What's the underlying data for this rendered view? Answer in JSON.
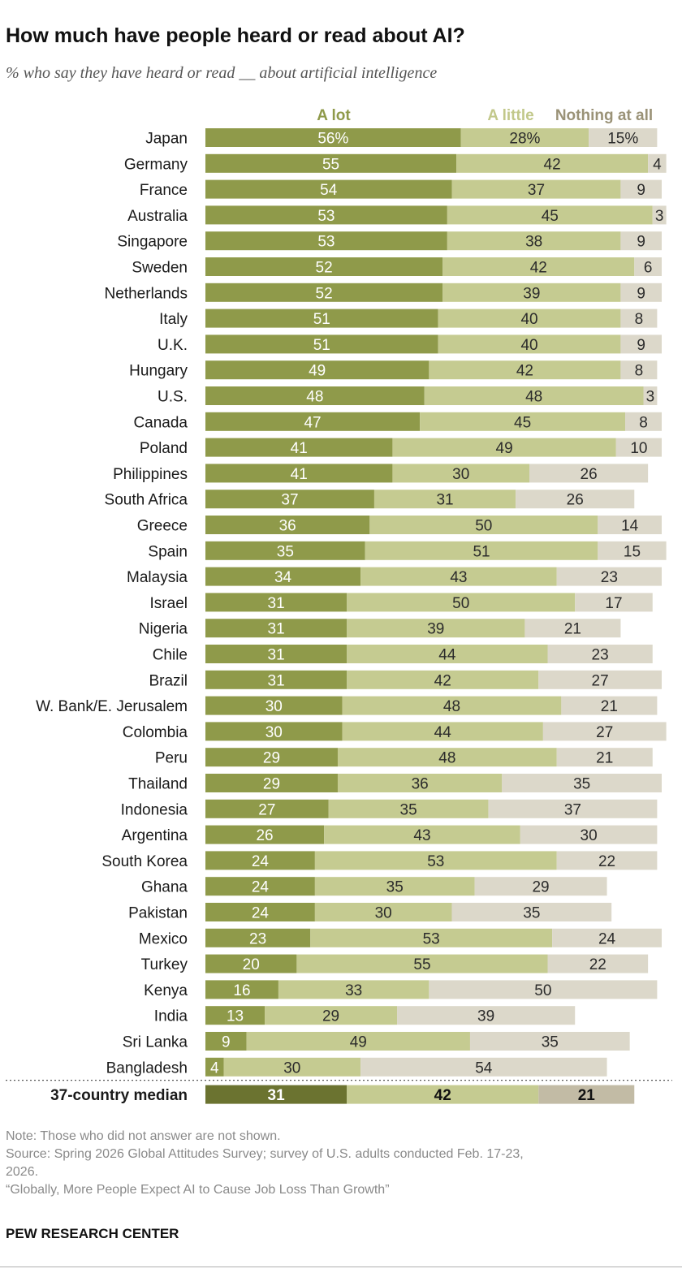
{
  "header": {
    "title": "How much have people heard or read about AI?",
    "subtitle": "% who say they have heard or read __ about artificial intelligence"
  },
  "colors": {
    "a_lot": "#8f9a4a",
    "a_little": "#c5cb91",
    "nothing": "#dcd8ca",
    "median_a_lot": "#6b7330",
    "median_nothing": "#c2bba5",
    "legend_a_lot": "#8f9a4a",
    "legend_a_little": "#c2c88a",
    "legend_nothing": "#9a9277"
  },
  "chart_data": {
    "type": "bar",
    "orientation": "horizontal",
    "stacked": true,
    "unit": "%",
    "series": [
      {
        "name": "A lot"
      },
      {
        "name": "A little"
      },
      {
        "name": "Nothing at all"
      }
    ],
    "rows": [
      {
        "country": "Japan",
        "values": [
          56,
          28,
          15
        ],
        "labels": [
          "56%",
          "28%",
          "15%"
        ]
      },
      {
        "country": "Germany",
        "values": [
          55,
          42,
          4
        ],
        "labels": [
          "55",
          "42",
          "4"
        ]
      },
      {
        "country": "France",
        "values": [
          54,
          37,
          9
        ],
        "labels": [
          "54",
          "37",
          "9"
        ]
      },
      {
        "country": "Australia",
        "values": [
          53,
          45,
          3
        ],
        "labels": [
          "53",
          "45",
          "3"
        ]
      },
      {
        "country": "Singapore",
        "values": [
          53,
          38,
          9
        ],
        "labels": [
          "53",
          "38",
          "9"
        ]
      },
      {
        "country": "Sweden",
        "values": [
          52,
          42,
          6
        ],
        "labels": [
          "52",
          "42",
          "6"
        ]
      },
      {
        "country": "Netherlands",
        "values": [
          52,
          39,
          9
        ],
        "labels": [
          "52",
          "39",
          "9"
        ]
      },
      {
        "country": "Italy",
        "values": [
          51,
          40,
          8
        ],
        "labels": [
          "51",
          "40",
          "8"
        ]
      },
      {
        "country": "U.K.",
        "values": [
          51,
          40,
          9
        ],
        "labels": [
          "51",
          "40",
          "9"
        ]
      },
      {
        "country": "Hungary",
        "values": [
          49,
          42,
          8
        ],
        "labels": [
          "49",
          "42",
          "8"
        ]
      },
      {
        "country": "U.S.",
        "values": [
          48,
          48,
          3
        ],
        "labels": [
          "48",
          "48",
          "3"
        ]
      },
      {
        "country": "Canada",
        "values": [
          47,
          45,
          8
        ],
        "labels": [
          "47",
          "45",
          "8"
        ]
      },
      {
        "country": "Poland",
        "values": [
          41,
          49,
          10
        ],
        "labels": [
          "41",
          "49",
          "10"
        ]
      },
      {
        "country": "Philippines",
        "values": [
          41,
          30,
          26
        ],
        "labels": [
          "41",
          "30",
          "26"
        ]
      },
      {
        "country": "South Africa",
        "values": [
          37,
          31,
          26
        ],
        "labels": [
          "37",
          "31",
          "26"
        ]
      },
      {
        "country": "Greece",
        "values": [
          36,
          50,
          14
        ],
        "labels": [
          "36",
          "50",
          "14"
        ]
      },
      {
        "country": "Spain",
        "values": [
          35,
          51,
          15
        ],
        "labels": [
          "35",
          "51",
          "15"
        ]
      },
      {
        "country": "Malaysia",
        "values": [
          34,
          43,
          23
        ],
        "labels": [
          "34",
          "43",
          "23"
        ]
      },
      {
        "country": "Israel",
        "values": [
          31,
          50,
          17
        ],
        "labels": [
          "31",
          "50",
          "17"
        ]
      },
      {
        "country": "Nigeria",
        "values": [
          31,
          39,
          21
        ],
        "labels": [
          "31",
          "39",
          "21"
        ]
      },
      {
        "country": "Chile",
        "values": [
          31,
          44,
          23
        ],
        "labels": [
          "31",
          "44",
          "23"
        ]
      },
      {
        "country": "Brazil",
        "values": [
          31,
          42,
          27
        ],
        "labels": [
          "31",
          "42",
          "27"
        ]
      },
      {
        "country": "W. Bank/E. Jerusalem",
        "values": [
          30,
          48,
          21
        ],
        "labels": [
          "30",
          "48",
          "21"
        ]
      },
      {
        "country": "Colombia",
        "values": [
          30,
          44,
          27
        ],
        "labels": [
          "30",
          "44",
          "27"
        ]
      },
      {
        "country": "Peru",
        "values": [
          29,
          48,
          21
        ],
        "labels": [
          "29",
          "48",
          "21"
        ]
      },
      {
        "country": "Thailand",
        "values": [
          29,
          36,
          35
        ],
        "labels": [
          "29",
          "36",
          "35"
        ]
      },
      {
        "country": "Indonesia",
        "values": [
          27,
          35,
          37
        ],
        "labels": [
          "27",
          "35",
          "37"
        ]
      },
      {
        "country": "Argentina",
        "values": [
          26,
          43,
          30
        ],
        "labels": [
          "26",
          "43",
          "30"
        ]
      },
      {
        "country": "South Korea",
        "values": [
          24,
          53,
          22
        ],
        "labels": [
          "24",
          "53",
          "22"
        ]
      },
      {
        "country": "Ghana",
        "values": [
          24,
          35,
          29
        ],
        "labels": [
          "24",
          "35",
          "29"
        ]
      },
      {
        "country": "Pakistan",
        "values": [
          24,
          30,
          35
        ],
        "labels": [
          "24",
          "30",
          "35"
        ]
      },
      {
        "country": "Mexico",
        "values": [
          23,
          53,
          24
        ],
        "labels": [
          "23",
          "53",
          "24"
        ]
      },
      {
        "country": "Turkey",
        "values": [
          20,
          55,
          22
        ],
        "labels": [
          "20",
          "55",
          "22"
        ]
      },
      {
        "country": "Kenya",
        "values": [
          16,
          33,
          50
        ],
        "labels": [
          "16",
          "33",
          "50"
        ]
      },
      {
        "country": "India",
        "values": [
          13,
          29,
          39
        ],
        "labels": [
          "13",
          "29",
          "39"
        ]
      },
      {
        "country": "Sri Lanka",
        "values": [
          9,
          49,
          35
        ],
        "labels": [
          "9",
          "49",
          "35"
        ]
      },
      {
        "country": "Bangladesh",
        "values": [
          4,
          30,
          54
        ],
        "labels": [
          "4",
          "30",
          "54"
        ]
      }
    ],
    "median": {
      "label": "37-country median",
      "values": [
        31,
        42,
        21
      ],
      "labels": [
        "31",
        "42",
        "21"
      ]
    },
    "xlim": [
      0,
      100
    ],
    "grid": false,
    "legend": "top"
  },
  "notes": {
    "note": "Note: Those who did not answer are not shown.",
    "source_line1": "Source: Spring 2026 Global Attitudes Survey; survey of U.S. adults conducted Feb. 17-23,",
    "source_line2": "2026.",
    "report": "“Globally, More People Expect AI to Cause Job Loss Than Growth”"
  },
  "footer": {
    "org": "PEW RESEARCH CENTER"
  }
}
